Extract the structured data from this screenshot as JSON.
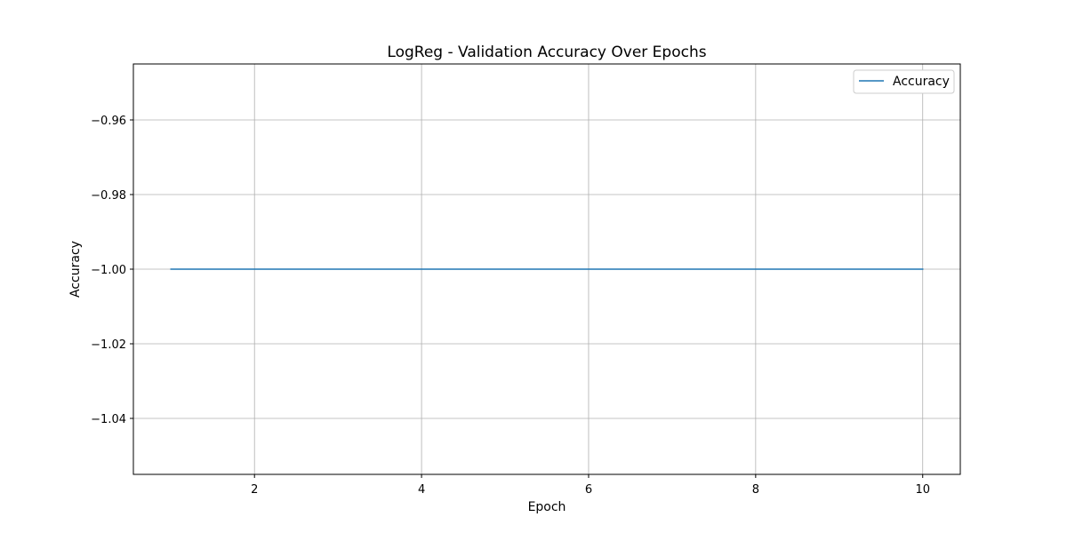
{
  "chart_data": {
    "type": "line",
    "title": "LogReg - Validation Accuracy Over Epochs",
    "xlabel": "Epoch",
    "ylabel": "Accuracy",
    "xlim": [
      0.55,
      10.45
    ],
    "ylim": [
      -1.055,
      -0.945
    ],
    "xticks": [
      2,
      4,
      6,
      8,
      10
    ],
    "xtick_labels": [
      "2",
      "4",
      "6",
      "8",
      "10"
    ],
    "yticks": [
      -0.96,
      -0.98,
      -1.0,
      -1.02,
      -1.04
    ],
    "ytick_labels": [
      "−0.96",
      "−0.98",
      "−1.00",
      "−1.02",
      "−1.04"
    ],
    "grid": true,
    "legend_position": "top-right",
    "series": [
      {
        "name": "Accuracy",
        "color": "#1f77b4",
        "x": [
          1,
          2,
          3,
          4,
          5,
          6,
          7,
          8,
          9,
          10
        ],
        "y": [
          -1.0,
          -1.0,
          -1.0,
          -1.0,
          -1.0,
          -1.0,
          -1.0,
          -1.0,
          -1.0,
          -1.0
        ]
      }
    ]
  }
}
